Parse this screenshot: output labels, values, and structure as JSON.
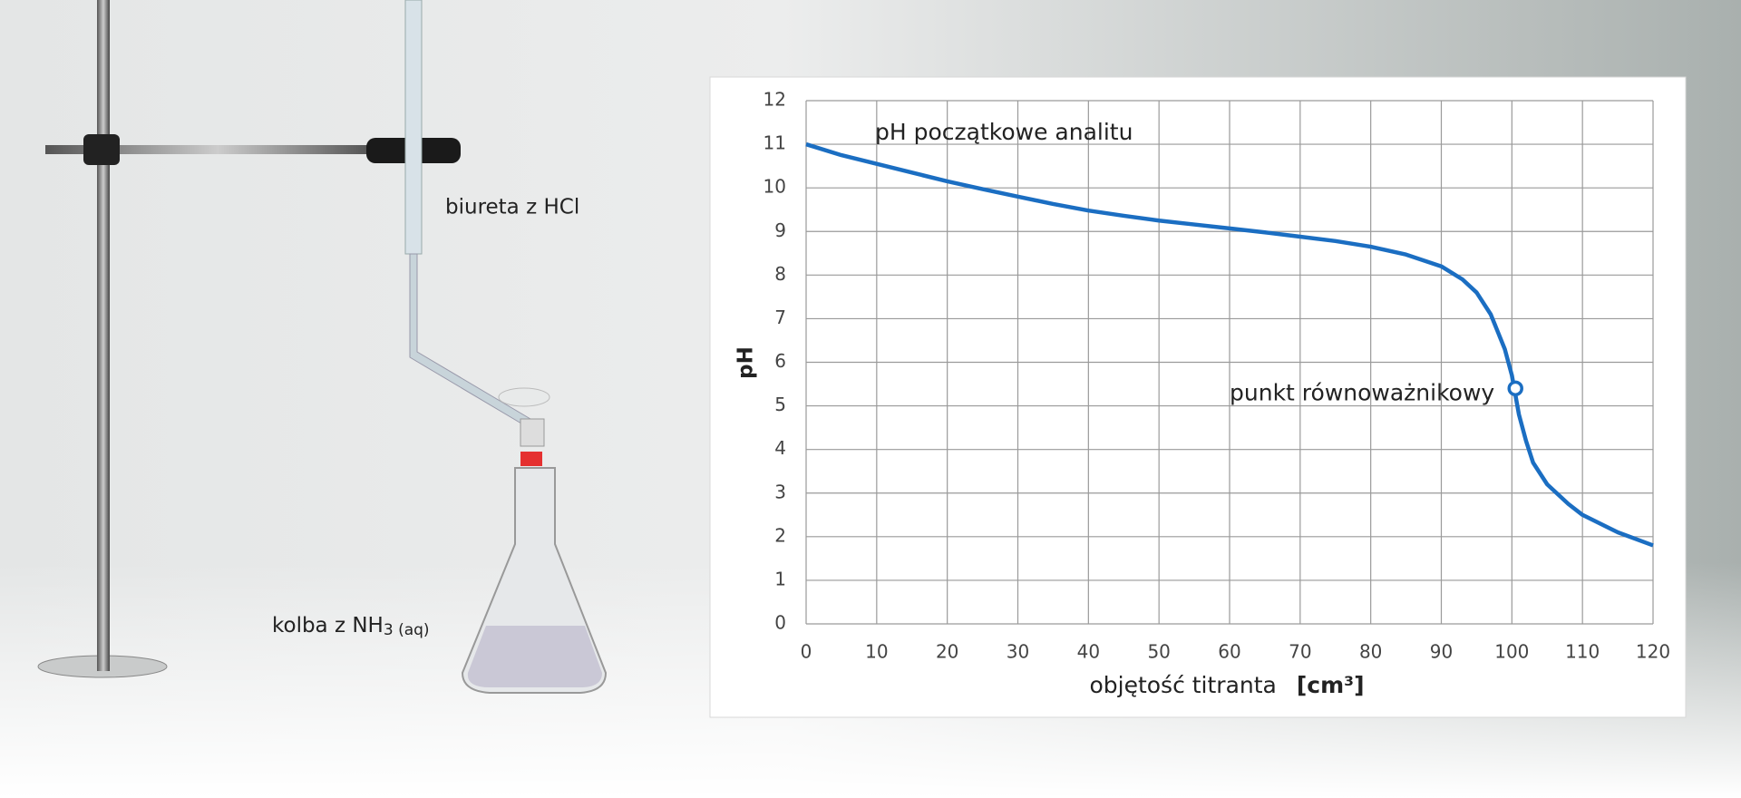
{
  "illustration": {
    "burette_label": "biureta z HCl",
    "flask_label": "kolba z NH",
    "flask_label_sub": "3 (aq)"
  },
  "chart_data": {
    "type": "line",
    "xlabel": "objętość titranta",
    "xlabel_unit": "[cm³]",
    "ylabel": "pH",
    "x": [
      0,
      5,
      10,
      15,
      20,
      25,
      30,
      35,
      40,
      45,
      50,
      55,
      60,
      65,
      70,
      75,
      80,
      85,
      90,
      93,
      95,
      97,
      99,
      100,
      101,
      102,
      103,
      105,
      108,
      110,
      115,
      120
    ],
    "series": [
      {
        "name": "pH",
        "color": "#1b6ec2",
        "values": [
          11.0,
          10.75,
          10.55,
          10.35,
          10.15,
          9.97,
          9.8,
          9.63,
          9.48,
          9.36,
          9.25,
          9.16,
          9.07,
          8.98,
          8.88,
          8.78,
          8.65,
          8.47,
          8.2,
          7.9,
          7.6,
          7.1,
          6.3,
          5.7,
          4.8,
          4.2,
          3.7,
          3.2,
          2.75,
          2.5,
          2.1,
          1.8
        ]
      }
    ],
    "initial_label": "pH początkowe analitu",
    "equivalence_point": {
      "x": 100.5,
      "y": 5.4,
      "label": "punkt równoważnikowy"
    },
    "xlim": [
      0,
      120
    ],
    "xticks": [
      0,
      10,
      20,
      30,
      40,
      50,
      60,
      70,
      80,
      90,
      100,
      110,
      120
    ],
    "ylim": [
      0,
      12
    ],
    "yticks": [
      0,
      1,
      2,
      3,
      4,
      5,
      6,
      7,
      8,
      9,
      10,
      11,
      12
    ],
    "grid": true
  }
}
